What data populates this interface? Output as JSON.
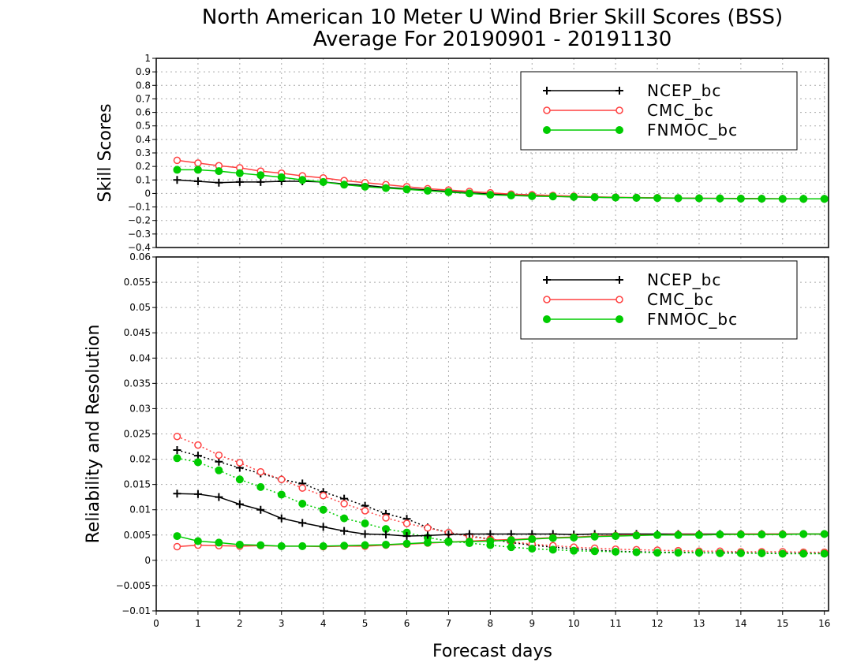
{
  "chart_data": {
    "type": "line",
    "title_line1": "North American 10 Meter U Wind Brier Skill Scores (BSS)",
    "title_line2": "Average For 20190901 - 20191130",
    "xlabel": "Forecast days",
    "xlim": [
      0,
      16.1
    ],
    "xticks": [
      "0",
      "1",
      "2",
      "3",
      "4",
      "5",
      "6",
      "7",
      "8",
      "9",
      "10",
      "11",
      "12",
      "13",
      "14",
      "15",
      "16"
    ],
    "x": [
      0.5,
      1,
      1.5,
      2,
      2.5,
      3,
      3.5,
      4,
      4.5,
      5,
      5.5,
      6,
      6.5,
      7,
      7.5,
      8,
      8.5,
      9,
      9.5,
      10,
      10.5,
      11,
      11.5,
      12,
      12.5,
      13,
      13.5,
      14,
      14.5,
      15,
      15.5,
      16
    ],
    "panels": [
      {
        "ylabel": "Skill Scores",
        "ylim": [
          -0.4,
          1
        ],
        "yticks": [
          "1",
          "0.9",
          "0.8",
          "0.7",
          "0.6",
          "0.5",
          "0.4",
          "0.3",
          "0.2",
          "0.1",
          "0",
          "−0.1",
          "−0.2",
          "−0.3",
          "−0.4"
        ],
        "legend": [
          "NCEP_bc",
          "CMC_bc",
          "FNMOC_bc"
        ],
        "series": [
          {
            "name": "NCEP_bc",
            "color": "#000000",
            "marker": "plus",
            "style": "solid",
            "values": [
              0.1,
              0.09,
              0.08,
              0.085,
              0.085,
              0.09,
              0.09,
              0.085,
              0.07,
              0.06,
              0.045,
              0.035,
              0.025,
              0.015,
              0.005,
              -0.005,
              -0.01,
              -0.015,
              -0.02,
              -0.025,
              -0.028,
              -0.03,
              -0.032,
              -0.034,
              -0.035,
              -0.036,
              -0.037,
              -0.038,
              -0.039,
              -0.04,
              -0.04,
              -0.04
            ]
          },
          {
            "name": "CMC_bc",
            "color": "#ff4040",
            "marker": "circle-open",
            "style": "solid",
            "values": [
              0.245,
              0.225,
              0.205,
              0.19,
              0.165,
              0.15,
              0.13,
              0.115,
              0.095,
              0.08,
              0.065,
              0.05,
              0.035,
              0.025,
              0.015,
              0.005,
              -0.005,
              -0.01,
              -0.015,
              -0.02,
              -0.025,
              -0.028,
              -0.03,
              -0.032,
              -0.034,
              -0.035,
              -0.036,
              -0.037,
              -0.038,
              -0.039,
              -0.04,
              -0.04
            ]
          },
          {
            "name": "FNMOC_bc",
            "color": "#00cc00",
            "marker": "circle-filled",
            "style": "solid",
            "values": [
              0.175,
              0.175,
              0.165,
              0.15,
              0.135,
              0.12,
              0.1,
              0.085,
              0.065,
              0.05,
              0.04,
              0.03,
              0.02,
              0.01,
              0.0,
              -0.01,
              -0.015,
              -0.02,
              -0.022,
              -0.025,
              -0.028,
              -0.03,
              -0.032,
              -0.034,
              -0.035,
              -0.036,
              -0.037,
              -0.038,
              -0.039,
              -0.04,
              -0.04,
              -0.04
            ]
          }
        ]
      },
      {
        "ylabel": "Reliability and Resolution",
        "ylim": [
          -0.01,
          0.06
        ],
        "yticks": [
          "0.06",
          "0.055",
          "0.05",
          "0.045",
          "0.04",
          "0.035",
          "0.03",
          "0.025",
          "0.02",
          "0.015",
          "0.01",
          "0.005",
          "0",
          "−0.005",
          "−0.01"
        ],
        "legend": [
          "NCEP_bc",
          "CMC_bc",
          "FNMOC_bc"
        ],
        "series": [
          {
            "name": "NCEP_bc",
            "color": "#000000",
            "marker": "plus",
            "style": "dotted",
            "values": [
              0.0218,
              0.0207,
              0.0195,
              0.0183,
              0.0172,
              0.016,
              0.0152,
              0.0135,
              0.0122,
              0.0108,
              0.0092,
              0.0082,
              0.0065,
              0.0055,
              0.0048,
              0.0042,
              0.0035,
              0.003,
              0.0026,
              0.0023,
              0.002,
              0.0018,
              0.0017,
              0.0016,
              0.0016,
              0.0015,
              0.0015,
              0.0015,
              0.0014,
              0.0014,
              0.0014,
              0.0014
            ]
          },
          {
            "name": "CMC_bc",
            "color": "#ff4040",
            "marker": "circle-open",
            "style": "dotted",
            "values": [
              0.0245,
              0.0228,
              0.0208,
              0.0193,
              0.0175,
              0.016,
              0.0143,
              0.0128,
              0.0112,
              0.0098,
              0.0084,
              0.0073,
              0.0064,
              0.0055,
              0.0047,
              0.0042,
              0.0037,
              0.0032,
              0.0029,
              0.0026,
              0.0024,
              0.0022,
              0.0021,
              0.002,
              0.0019,
              0.0018,
              0.0018,
              0.0017,
              0.0017,
              0.0017,
              0.0016,
              0.0016
            ]
          },
          {
            "name": "FNMOC_bc",
            "color": "#00cc00",
            "marker": "circle-filled",
            "style": "dotted",
            "values": [
              0.0202,
              0.0194,
              0.0178,
              0.016,
              0.0145,
              0.013,
              0.0112,
              0.01,
              0.0083,
              0.0073,
              0.0062,
              0.0055,
              0.0045,
              0.0038,
              0.0034,
              0.003,
              0.0026,
              0.0023,
              0.0021,
              0.0019,
              0.0018,
              0.0017,
              0.0016,
              0.0015,
              0.0015,
              0.0015,
              0.0014,
              0.0014,
              0.0014,
              0.0013,
              0.0013,
              0.0013
            ]
          },
          {
            "name": "NCEP_bc",
            "color": "#000000",
            "marker": "plus",
            "style": "solid",
            "values": [
              0.0132,
              0.0131,
              0.0125,
              0.0111,
              0.01,
              0.0083,
              0.0074,
              0.0066,
              0.0058,
              0.0052,
              0.0051,
              0.0048,
              0.0049,
              0.0051,
              0.0052,
              0.0052,
              0.0052,
              0.0052,
              0.0052,
              0.0051,
              0.0052,
              0.0052,
              0.0052,
              0.0052,
              0.0052,
              0.0052,
              0.0052,
              0.0052,
              0.0052,
              0.0052,
              0.0052,
              0.0052
            ]
          },
          {
            "name": "CMC_bc",
            "color": "#ff4040",
            "marker": "circle-open",
            "style": "solid",
            "values": [
              0.0027,
              0.003,
              0.0029,
              0.0028,
              0.0029,
              0.0028,
              0.0028,
              0.0027,
              0.0028,
              0.0028,
              0.003,
              0.0032,
              0.0034,
              0.0036,
              0.0038,
              0.004,
              0.0041,
              0.0043,
              0.0045,
              0.0046,
              0.0048,
              0.0049,
              0.005,
              0.005,
              0.0051,
              0.0051,
              0.0051,
              0.0052,
              0.0052,
              0.0052,
              0.0052,
              0.0052
            ]
          },
          {
            "name": "FNMOC_bc",
            "color": "#00cc00",
            "marker": "circle-filled",
            "style": "solid",
            "values": [
              0.0048,
              0.0038,
              0.0035,
              0.0031,
              0.003,
              0.0028,
              0.0028,
              0.0028,
              0.0029,
              0.003,
              0.0031,
              0.0033,
              0.0035,
              0.0036,
              0.0037,
              0.0038,
              0.004,
              0.0042,
              0.0044,
              0.0045,
              0.0047,
              0.0048,
              0.0049,
              0.005,
              0.005,
              0.005,
              0.0051,
              0.0051,
              0.0051,
              0.0051,
              0.0052,
              0.0052
            ]
          }
        ]
      }
    ]
  }
}
